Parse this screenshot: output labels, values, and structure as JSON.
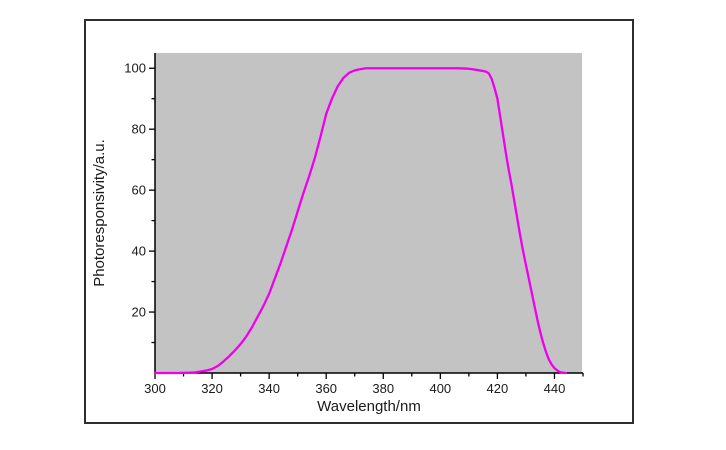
{
  "figure": {
    "background": "#ffffff",
    "border_color": "#2e2e2e"
  },
  "chart_data": {
    "type": "line",
    "title": "",
    "xlabel": "Wavelength/nm",
    "ylabel": "Photoresponsivity/a.u.",
    "xlim": [
      300,
      450
    ],
    "ylim": [
      0,
      105
    ],
    "x_major_ticks": [
      300,
      320,
      340,
      360,
      380,
      400,
      420,
      440
    ],
    "x_minor_ticks": [
      310,
      330,
      350,
      370,
      390,
      410,
      430,
      450
    ],
    "y_major_ticks": [
      20,
      40,
      60,
      80,
      100
    ],
    "y_minor_ticks": [
      10,
      30,
      50,
      70,
      90
    ],
    "grid": false,
    "legend": "none",
    "plot_background": "#c3c3c3",
    "axis_color": "#000000",
    "series": [
      {
        "name": "photoresponsivity",
        "color": "#ee00ee",
        "points": [
          [
            300,
            0
          ],
          [
            304,
            0
          ],
          [
            308,
            0
          ],
          [
            312,
            0.1
          ],
          [
            314,
            0.2
          ],
          [
            316,
            0.5
          ],
          [
            318,
            0.8
          ],
          [
            320,
            1.3
          ],
          [
            322,
            2.3
          ],
          [
            324,
            3.8
          ],
          [
            326,
            5.5
          ],
          [
            328,
            7.4
          ],
          [
            330,
            9.5
          ],
          [
            332,
            12
          ],
          [
            334,
            15
          ],
          [
            336,
            18.5
          ],
          [
            338,
            22
          ],
          [
            340,
            26
          ],
          [
            342,
            31
          ],
          [
            344,
            36
          ],
          [
            346,
            41.5
          ],
          [
            348,
            47
          ],
          [
            350,
            53
          ],
          [
            352,
            59
          ],
          [
            354,
            64.5
          ],
          [
            356,
            70.5
          ],
          [
            358,
            77.5
          ],
          [
            360,
            85
          ],
          [
            362,
            90
          ],
          [
            364,
            94
          ],
          [
            366,
            96.8
          ],
          [
            368,
            98.5
          ],
          [
            370,
            99.3
          ],
          [
            372,
            99.7
          ],
          [
            374,
            100
          ],
          [
            378,
            100
          ],
          [
            382,
            100
          ],
          [
            386,
            100
          ],
          [
            390,
            100
          ],
          [
            394,
            100
          ],
          [
            398,
            100
          ],
          [
            402,
            100
          ],
          [
            406,
            100
          ],
          [
            409,
            99.9
          ],
          [
            411,
            99.7
          ],
          [
            413,
            99.4
          ],
          [
            415,
            99.1
          ],
          [
            416,
            98.9
          ],
          [
            417,
            98.3
          ],
          [
            418,
            96.5
          ],
          [
            419,
            93.5
          ],
          [
            420,
            90
          ],
          [
            421,
            84
          ],
          [
            422,
            78
          ],
          [
            423,
            72
          ],
          [
            424,
            66.5
          ],
          [
            425,
            61.5
          ],
          [
            426,
            56
          ],
          [
            427,
            50.5
          ],
          [
            428,
            45
          ],
          [
            429,
            40
          ],
          [
            430,
            35.5
          ],
          [
            431,
            31
          ],
          [
            432,
            26.5
          ],
          [
            433,
            22
          ],
          [
            434,
            17.5
          ],
          [
            435,
            13.5
          ],
          [
            436,
            10
          ],
          [
            437,
            7
          ],
          [
            438,
            4.5
          ],
          [
            439,
            2.8
          ],
          [
            440,
            1.6
          ],
          [
            441,
            0.8
          ],
          [
            442,
            0.3
          ],
          [
            443,
            0.1
          ],
          [
            444,
            0
          ]
        ]
      }
    ]
  }
}
